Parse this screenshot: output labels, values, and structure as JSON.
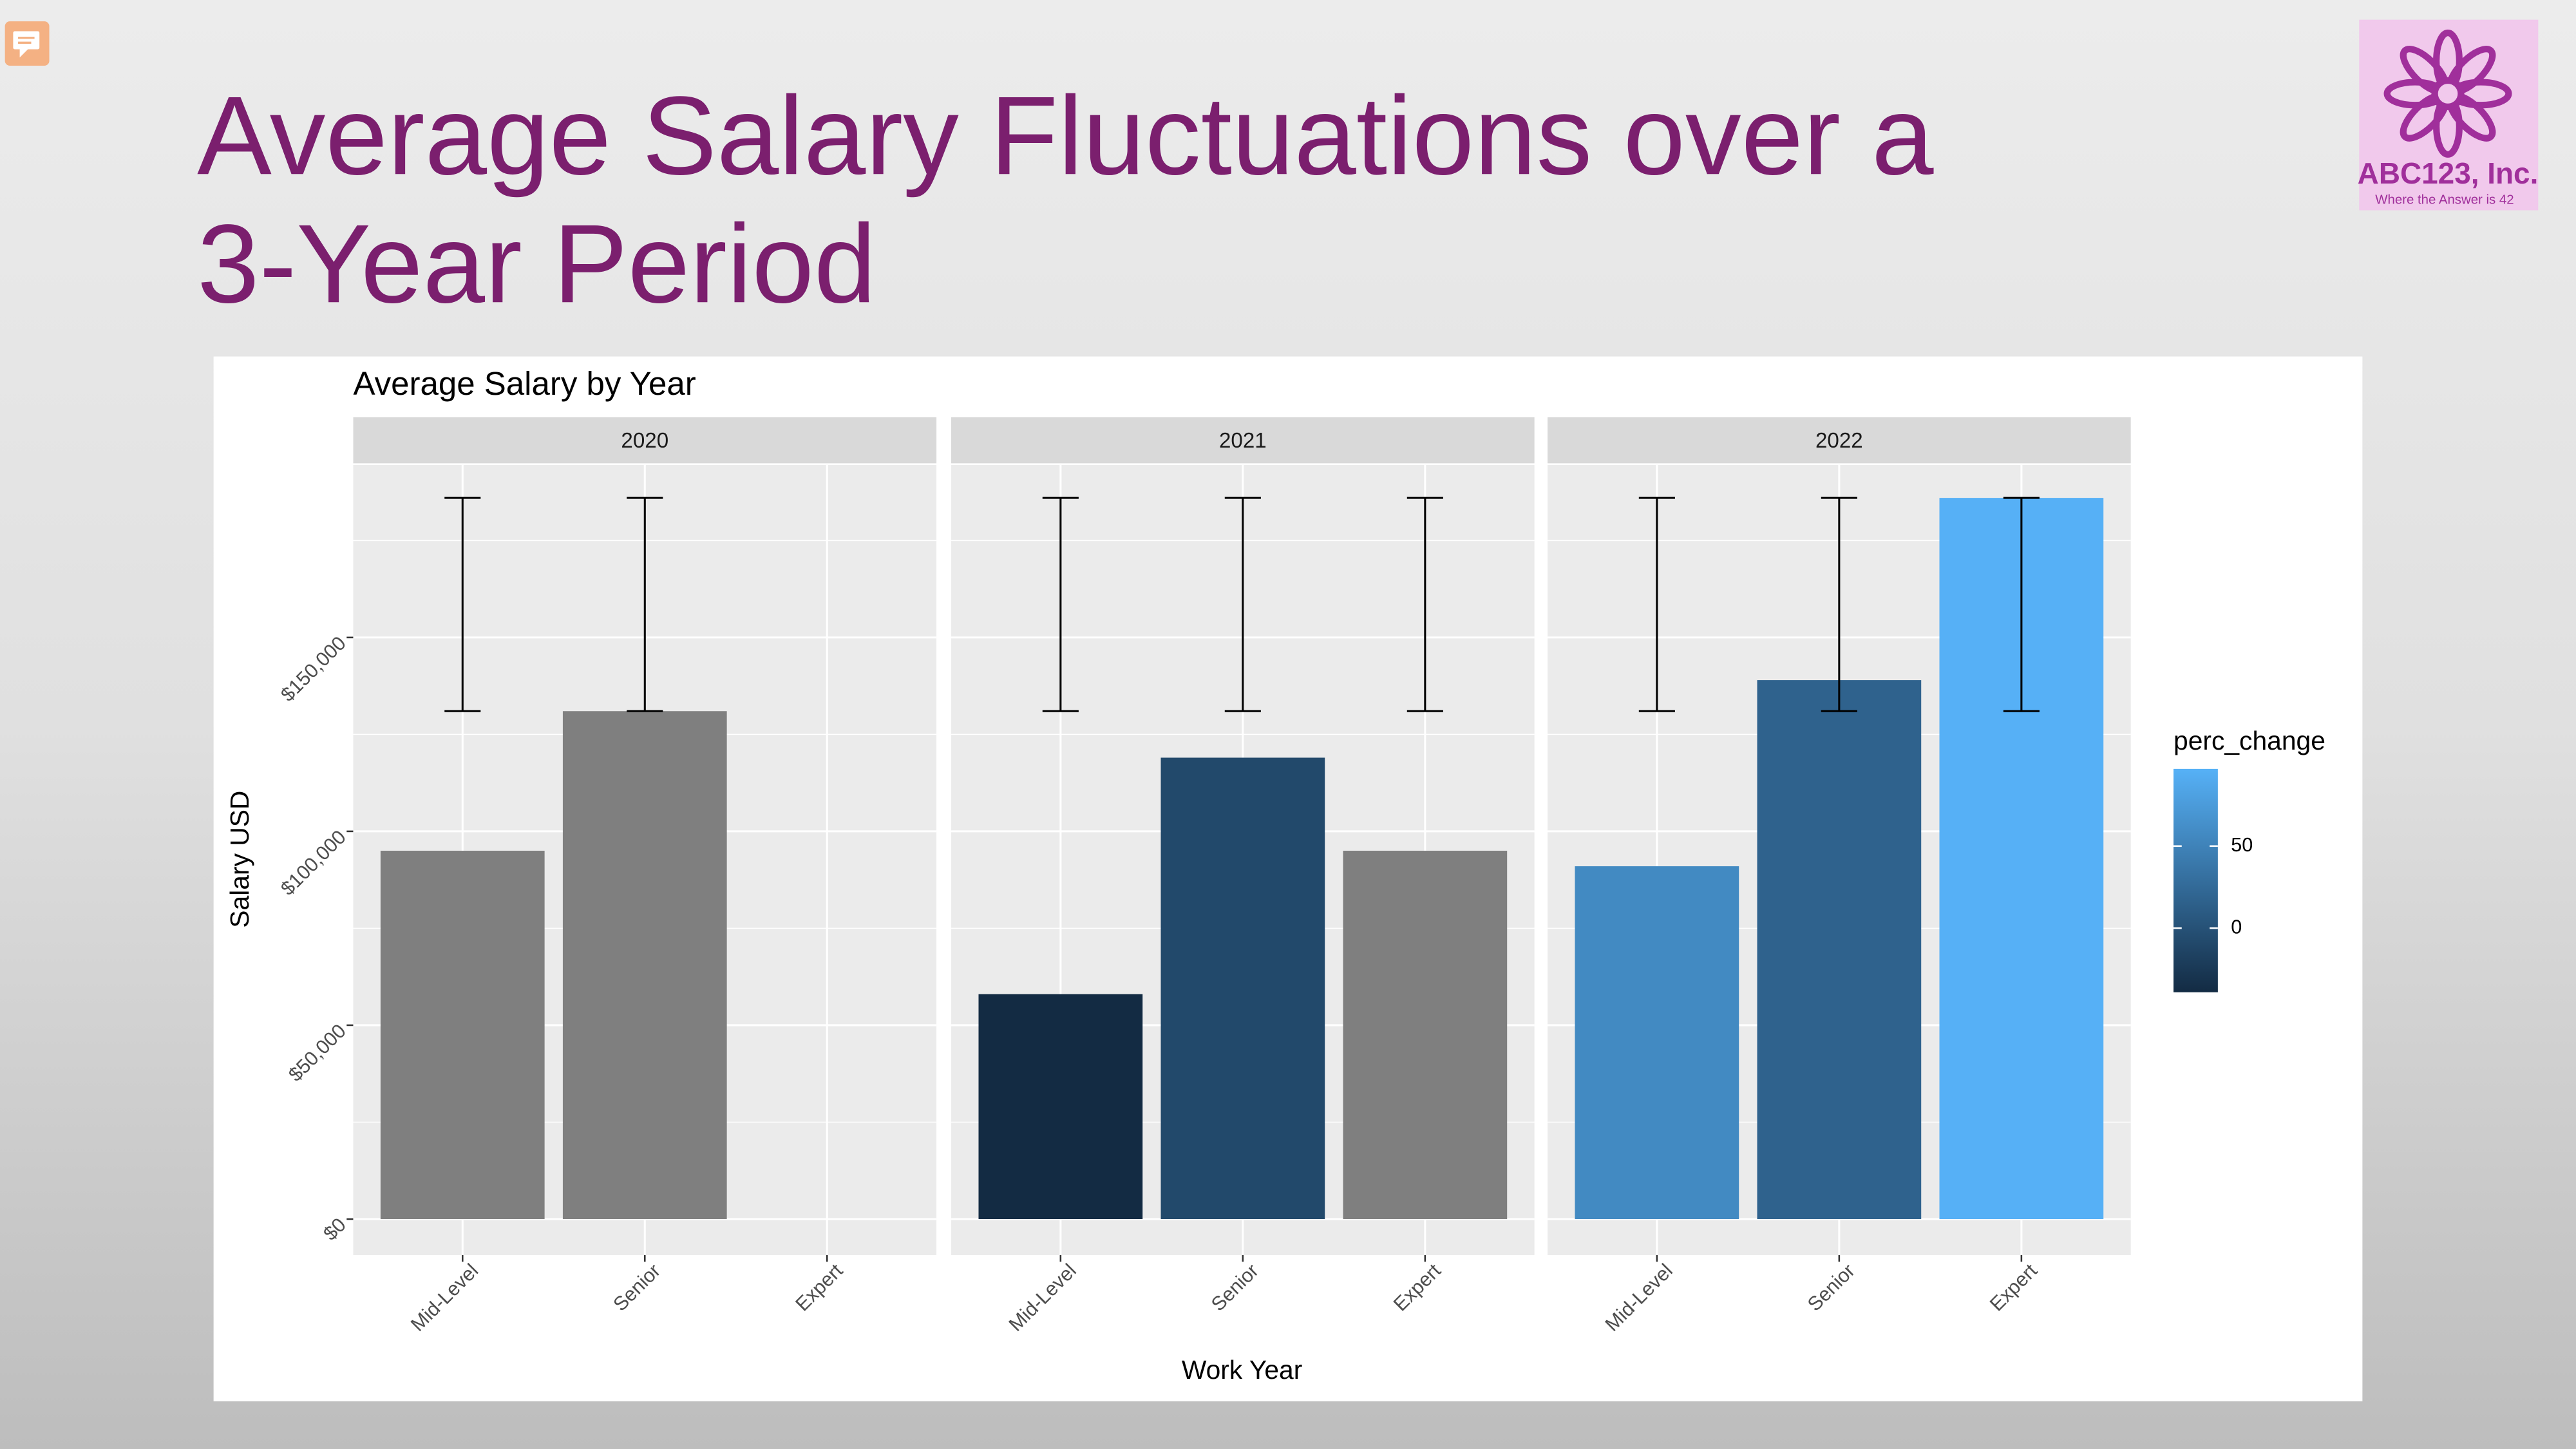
{
  "slide": {
    "title_lines": [
      "Average Salary Fluctuations over a",
      "3-Year Period"
    ],
    "logo": {
      "name": "ABC123, Inc.",
      "tagline": "Where the Answer is 42"
    }
  },
  "chart_data": {
    "type": "bar",
    "title": "Average Salary by Year",
    "x_label": "Work Year",
    "y_label": "Salary USD",
    "categories": [
      "Mid-Level",
      "Senior",
      "Expert"
    ],
    "facets": [
      {
        "label": "2020",
        "values": [
          95000,
          131000,
          null
        ],
        "perc_change": [
          null,
          null,
          null
        ],
        "err_low": [
          131000,
          131000,
          null
        ],
        "err_high": [
          186000,
          186000,
          null
        ]
      },
      {
        "label": "2021",
        "values": [
          58000,
          119000,
          95000
        ],
        "perc_change": [
          -39,
          -9,
          null
        ],
        "err_low": [
          131000,
          131000,
          131000
        ],
        "err_high": [
          186000,
          186000,
          186000
        ]
      },
      {
        "label": "2022",
        "values": [
          91000,
          139000,
          186000
        ],
        "perc_change": [
          57,
          17,
          96
        ],
        "err_low": [
          131000,
          131000,
          131000
        ],
        "err_high": [
          186000,
          186000,
          186000
        ]
      }
    ],
    "ylim": [
      -9300,
      194500
    ],
    "yticks": [
      {
        "value": 0,
        "label": "$0"
      },
      {
        "value": 50000,
        "label": "$50,000"
      },
      {
        "value": 100000,
        "label": "$100,000"
      },
      {
        "value": 150000,
        "label": "$150,000"
      }
    ],
    "minor_yticks": [
      25000,
      75000,
      125000,
      175000
    ],
    "grid": true,
    "legend": {
      "title": "perc_change",
      "clim": [
        -39,
        97
      ],
      "ticks": [
        0,
        50
      ],
      "low_color": "#132b43",
      "high_color": "#56b1f7",
      "na_color": "#7f7f7f"
    }
  }
}
